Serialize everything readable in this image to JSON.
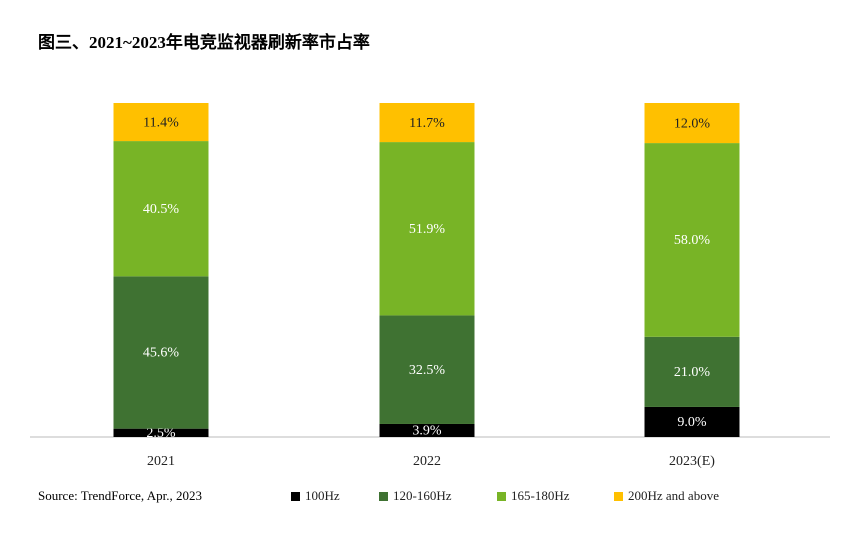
{
  "chart_data": {
    "type": "stacked_bar",
    "title": "图三、2021~2023年电竞监视器刷新率市占率",
    "source": "Source: TrendForce, Apr., 2023",
    "categories": [
      "2021",
      "2022",
      "2023(E)"
    ],
    "ylim": [
      0,
      100
    ],
    "series": [
      {
        "name": "100Hz",
        "color": "#000000",
        "values": [
          2.5,
          3.9,
          9.0
        ],
        "value_labels": [
          "2.5%",
          "3.9%",
          "9.0%"
        ]
      },
      {
        "name": "120-160Hz",
        "color": "#3f7232",
        "values": [
          45.6,
          32.5,
          21.0
        ],
        "value_labels": [
          "45.6%",
          "32.5%",
          "21.0%"
        ]
      },
      {
        "name": "165-180Hz",
        "color": "#78b426",
        "values": [
          40.5,
          51.9,
          58.0
        ],
        "value_labels": [
          "40.5%",
          "51.9%",
          "58.0%"
        ]
      },
      {
        "name": "200Hz and above",
        "color": "#ffc000",
        "values": [
          11.4,
          11.7,
          12.0
        ],
        "value_labels": [
          "11.4%",
          "11.7%",
          "12.0%"
        ]
      }
    ]
  }
}
